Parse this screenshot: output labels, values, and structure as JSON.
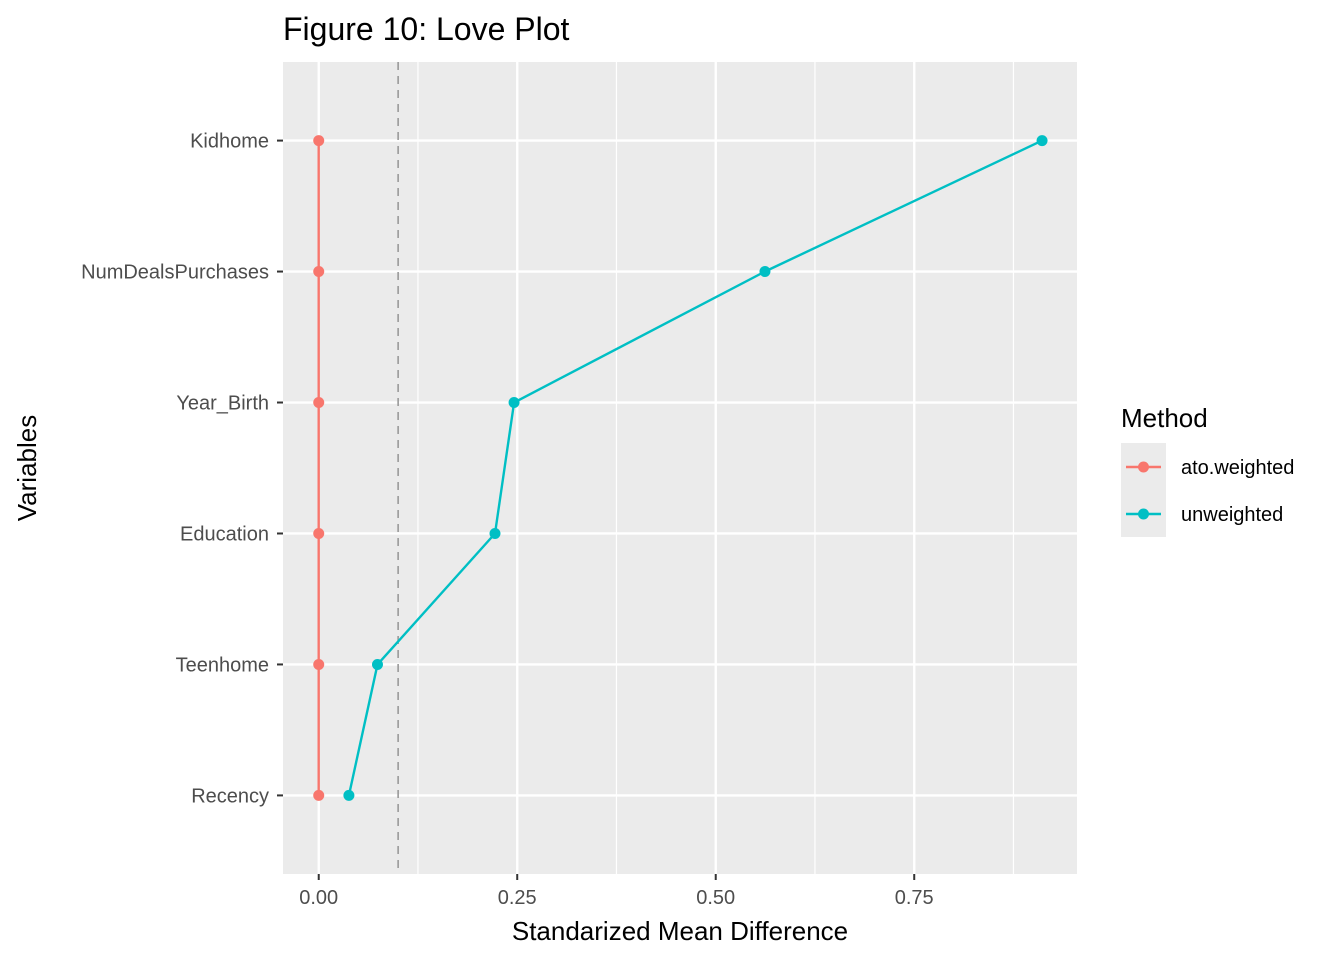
{
  "chart_data": {
    "type": "line",
    "title": "Figure 10: Love Plot",
    "xlabel": "Standarized Mean Difference",
    "ylabel": "Variables",
    "categories": [
      "Recency",
      "Teenhome",
      "Education",
      "Year_Birth",
      "NumDealsPurchases",
      "Kidhome"
    ],
    "x_ticks": [
      "0.00",
      "0.25",
      "0.50",
      "0.75"
    ],
    "x_tick_values": [
      0,
      0.25,
      0.5,
      0.75
    ],
    "xlim": [
      -0.045,
      0.955
    ],
    "threshold": 0.1,
    "legend": {
      "title": "Method",
      "placement": "right"
    },
    "series": [
      {
        "name": "ato.weighted",
        "color": "#F8766D",
        "values": [
          0,
          0,
          0,
          0,
          0,
          0
        ]
      },
      {
        "name": "unweighted",
        "color": "#00BFC4",
        "values": [
          0.038,
          0.074,
          0.222,
          0.246,
          0.562,
          0.911
        ]
      }
    ],
    "grid": true
  }
}
